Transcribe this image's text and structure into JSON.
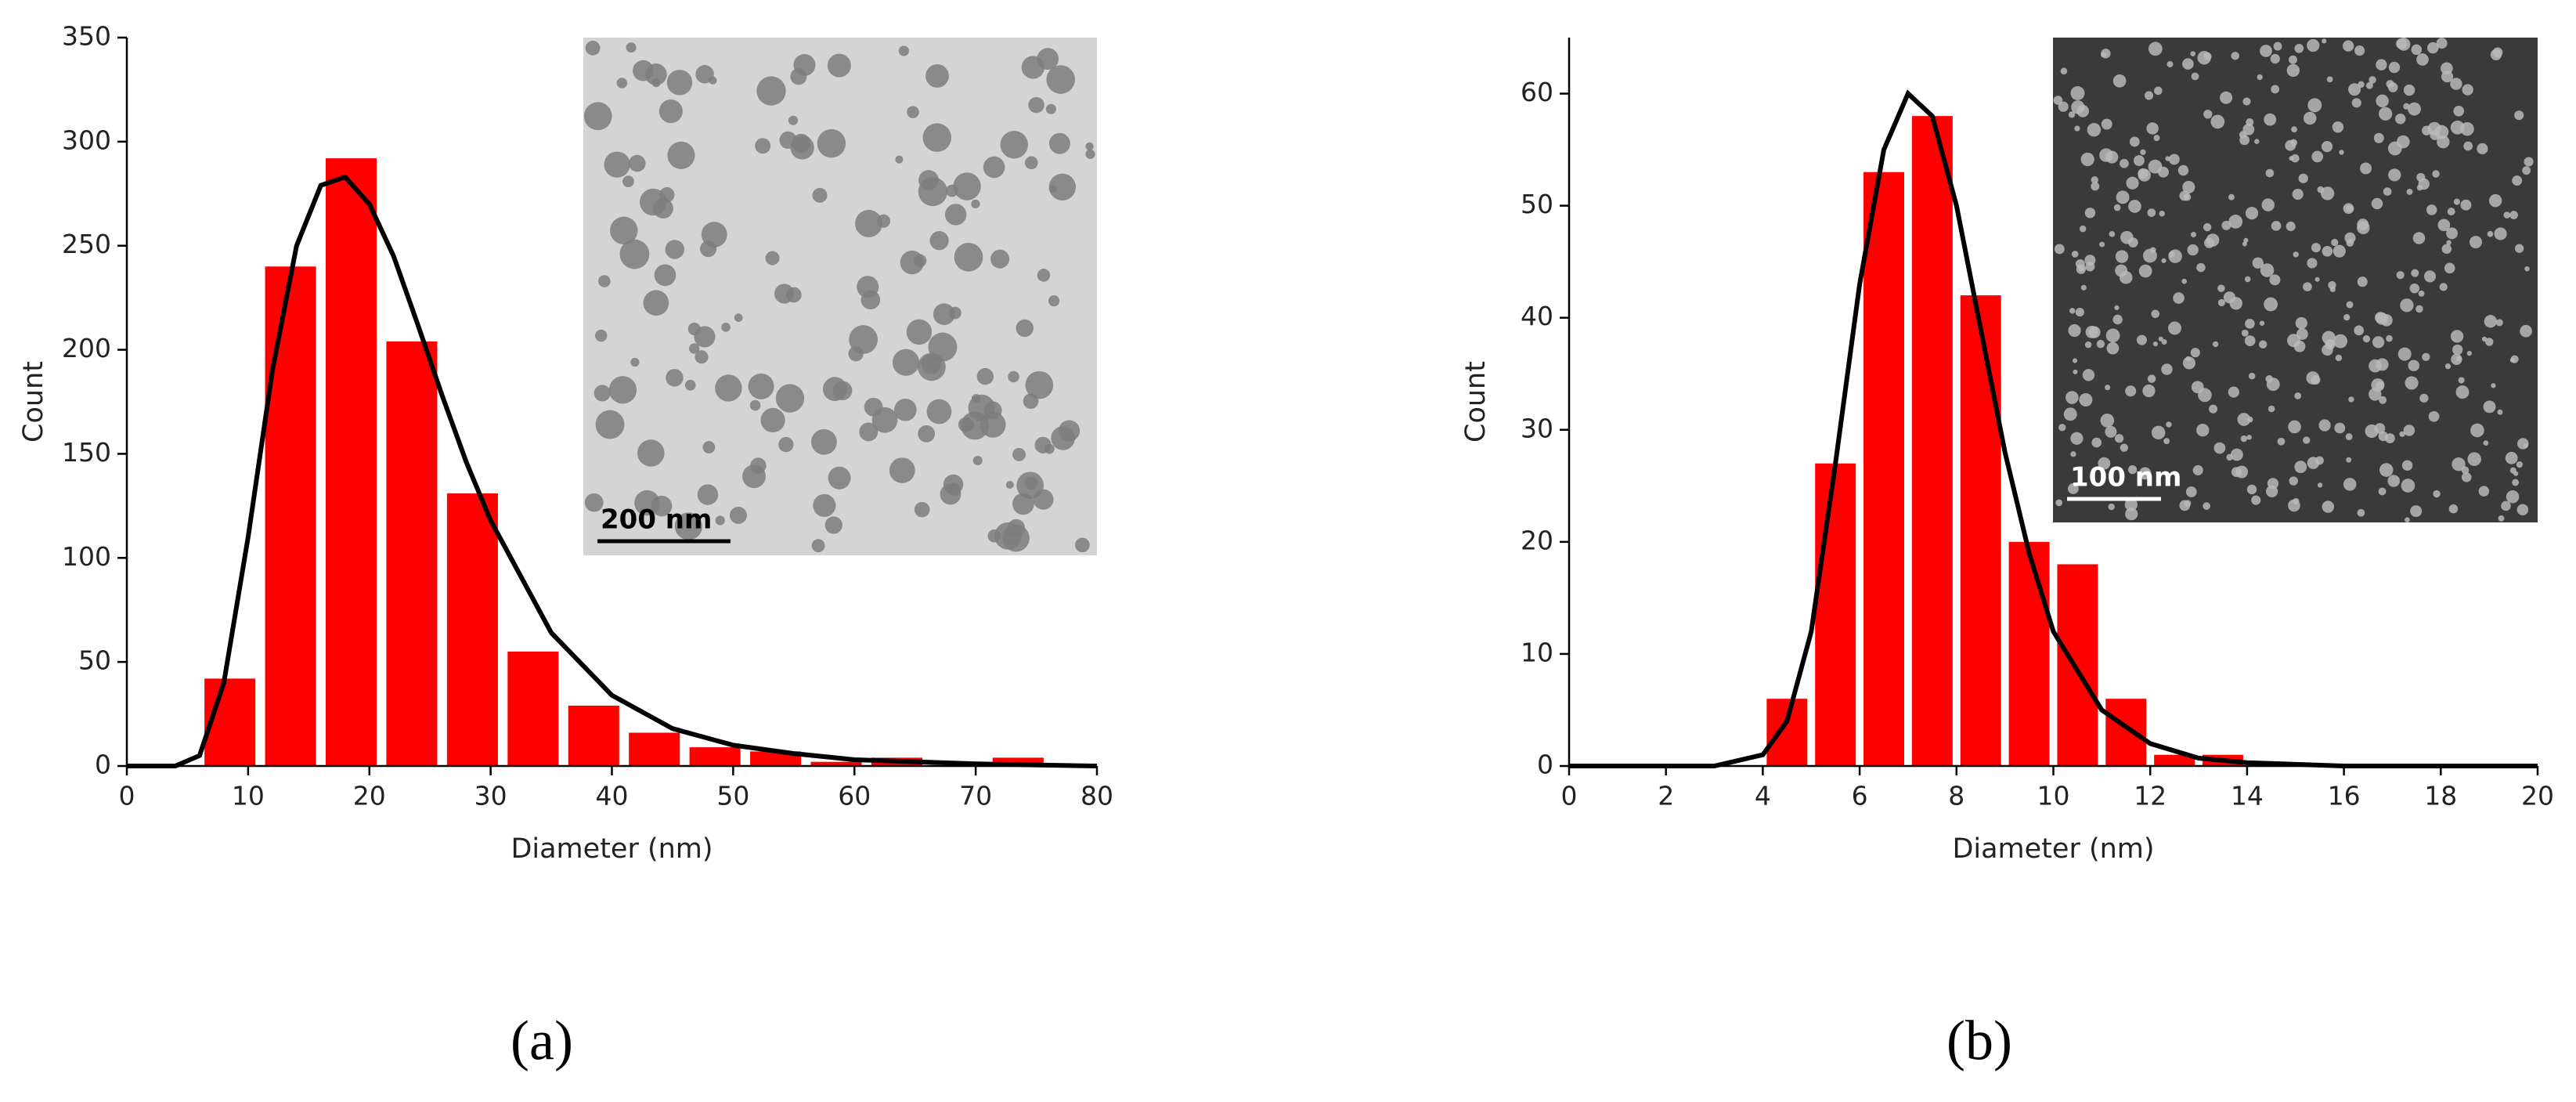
{
  "chart_data": [
    {
      "type": "histogram",
      "xlabel": "Diameter (nm)",
      "ylabel": "Count",
      "panel_label": "(a)",
      "inset_label": "200 nm",
      "bins": [
        6,
        11,
        16,
        21,
        26,
        31,
        36,
        41,
        46,
        51,
        56,
        61,
        66,
        71,
        76
      ],
      "values": [
        42,
        240,
        292,
        204,
        131,
        55,
        29,
        16,
        9,
        7,
        2,
        4,
        0,
        4
      ],
      "color": "#ff0000",
      "xlim": [
        0,
        80
      ],
      "ylim": [
        0,
        350
      ],
      "xticks": [
        0,
        10,
        20,
        30,
        40,
        50,
        60,
        70,
        80
      ],
      "yticks": [
        0,
        50,
        100,
        150,
        200,
        250,
        300,
        350
      ],
      "fit": {
        "type": "line",
        "color": "#000000",
        "x": [
          0,
          4,
          6,
          8,
          10,
          12,
          14,
          16,
          18,
          20,
          22,
          24,
          26,
          28,
          30,
          35,
          40,
          45,
          50,
          55,
          60,
          70,
          80
        ],
        "values": [
          0,
          0,
          5,
          40,
          110,
          190,
          250,
          279,
          283,
          270,
          245,
          212,
          178,
          146,
          118,
          64,
          34,
          18,
          10,
          6,
          3,
          1,
          0
        ]
      }
    },
    {
      "type": "histogram",
      "xlabel": "Diameter (nm)",
      "ylabel": "Count",
      "panel_label": "(b)",
      "inset_label": "100 nm",
      "bins": [
        4,
        5,
        6,
        7,
        8,
        9,
        10,
        11,
        12,
        13,
        14
      ],
      "values": [
        6,
        27,
        53,
        58,
        42,
        20,
        18,
        6,
        1,
        1
      ],
      "color": "#ff0000",
      "xlim": [
        0,
        20
      ],
      "ylim": [
        0,
        65
      ],
      "xticks": [
        0,
        2,
        4,
        6,
        8,
        10,
        12,
        14,
        16,
        18,
        20
      ],
      "yticks": [
        0,
        10,
        20,
        30,
        40,
        50,
        60
      ],
      "fit": {
        "type": "line",
        "color": "#000000",
        "x": [
          0,
          3,
          4,
          4.5,
          5,
          5.5,
          6,
          6.5,
          7,
          7.5,
          8,
          8.5,
          9,
          9.5,
          10,
          11,
          12,
          13,
          14,
          16,
          20
        ],
        "values": [
          0,
          0,
          1,
          4,
          12,
          27,
          43,
          55,
          60,
          58,
          50,
          39,
          28,
          19,
          12,
          5,
          2,
          0.7,
          0.3,
          0,
          0
        ]
      }
    }
  ]
}
